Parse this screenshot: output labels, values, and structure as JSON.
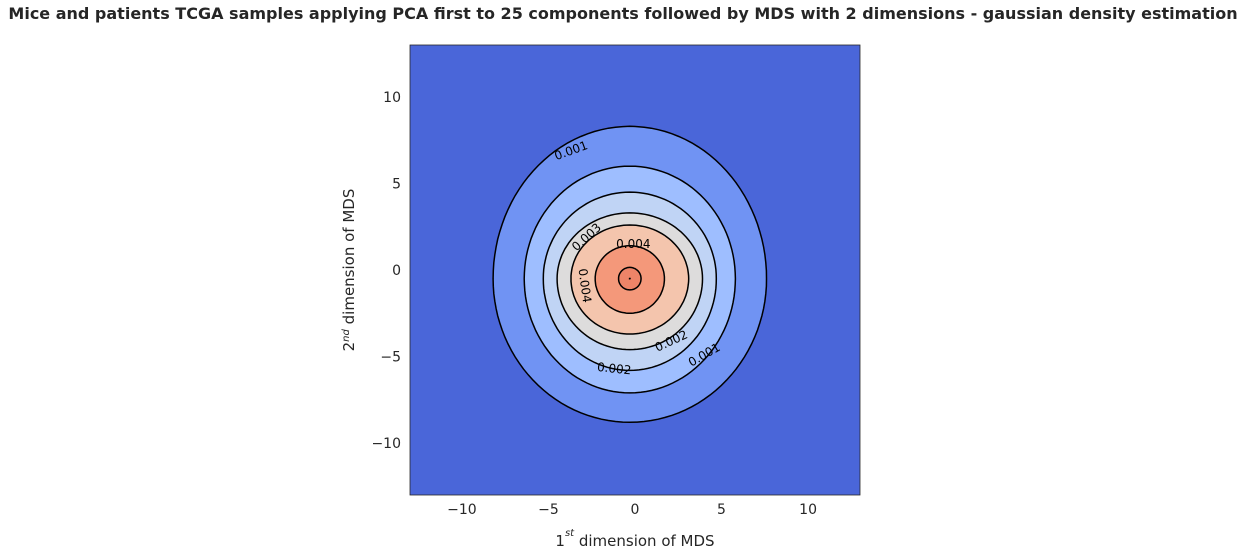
{
  "chart_data": {
    "type": "contour",
    "title": "Mice and patients TCGA samples applying PCA first to 25 components followed by MDS with 2 dimensions - gaussian density estimation",
    "xlabel": {
      "base": "1",
      "sup": "st",
      "rest": " dimension of MDS"
    },
    "ylabel": {
      "base": "2",
      "sup": "nd",
      "rest": " dimension of MDS"
    },
    "xlim": [
      -13,
      13
    ],
    "ylim": [
      -13,
      13
    ],
    "xticks": [
      -10,
      -5,
      0,
      5,
      10
    ],
    "yticks": [
      -10,
      -5,
      0,
      5,
      10
    ],
    "xtick_labels": [
      "−10",
      "−5",
      "0",
      "5",
      "10"
    ],
    "ytick_labels": [
      "−10",
      "−5",
      "0",
      "5",
      "10"
    ],
    "colormap": "coolwarm",
    "background_color": "#4a66d9",
    "center": [
      -0.3,
      -0.5
    ],
    "levels": [
      {
        "level": 0.001,
        "rx_left": 7.9,
        "rx_right": 7.9,
        "ry_top": 8.8,
        "ry_bottom": 8.3,
        "fill": "#7093f3"
      },
      {
        "level": 0.0015,
        "rx_left": 6.1,
        "rx_right": 6.1,
        "ry_top": 6.5,
        "ry_bottom": 6.6,
        "fill": "#9ebeff"
      },
      {
        "level": 0.002,
        "rx_left": 5.0,
        "rx_right": 5.0,
        "ry_top": 5.0,
        "ry_bottom": 5.3,
        "fill": "#c0d4f5"
      },
      {
        "level": 0.0025,
        "rx_left": 4.2,
        "rx_right": 4.2,
        "ry_top": 3.8,
        "ry_bottom": 4.1,
        "fill": "#dddcdc"
      },
      {
        "level": 0.003,
        "rx_left": 3.4,
        "rx_right": 3.4,
        "ry_top": 3.1,
        "ry_bottom": 3.2,
        "fill": "#f4c5ad"
      },
      {
        "level": 0.0035,
        "rx_left": 2.0,
        "rx_right": 2.0,
        "ry_top": 1.9,
        "ry_bottom": 2.0,
        "fill": "#f4987a"
      },
      {
        "level": 0.004,
        "rx_left": 0.65,
        "rx_right": 0.65,
        "ry_top": 0.65,
        "ry_bottom": 0.65,
        "fill": "#ee8468"
      },
      {
        "level": 0.0045,
        "rx_left": 0.01,
        "rx_right": 0.01,
        "ry_top": 0.01,
        "ry_bottom": 0.01,
        "fill": "#d24b40"
      }
    ],
    "contour_labels": [
      {
        "text": "0.001",
        "x": -3.7,
        "y": 6.9,
        "angle": -20
      },
      {
        "text": "0.003",
        "x": -2.8,
        "y": 1.9,
        "angle": -42
      },
      {
        "text": "0.004",
        "x": -0.1,
        "y": 1.5,
        "angle": 0
      },
      {
        "text": "0.004",
        "x": -2.9,
        "y": -0.9,
        "angle": 82
      },
      {
        "text": "0.002",
        "x": 2.1,
        "y": -4.1,
        "angle": -25
      },
      {
        "text": "0.002",
        "x": -1.2,
        "y": -5.7,
        "angle": 6
      },
      {
        "text": "0.001",
        "x": 4.0,
        "y": -4.9,
        "angle": -30
      }
    ]
  }
}
